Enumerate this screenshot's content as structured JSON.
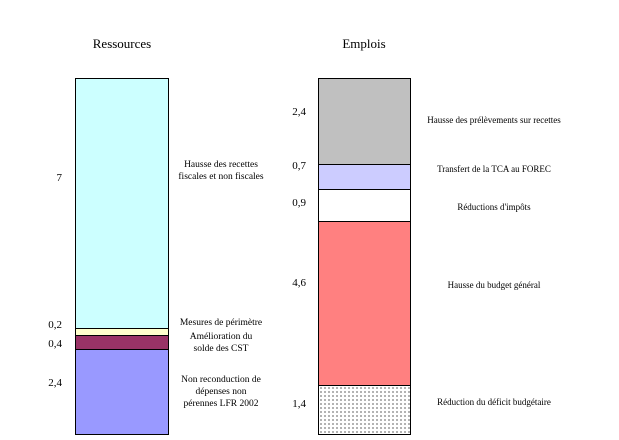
{
  "chart_data": {
    "type": "bar",
    "subtype": "paired-stacked-columns",
    "title": "",
    "unit_total": 10,
    "grid": false,
    "legend": "none",
    "columns": [
      {
        "title": "Ressources",
        "segments": [
          {
            "value_label": "7",
            "value": 7,
            "label": "Hausse des recettes\nfiscales et non fiscales",
            "color": "#CCFFFF"
          },
          {
            "value_label": "0,2",
            "value": 0.2,
            "label": "Mesures de périmètre",
            "color": "#FFFFCC"
          },
          {
            "value_label": "0,4",
            "value": 0.4,
            "label": "Amélioration du\nsolde des CST",
            "color": "#993366"
          },
          {
            "value_label": "2,4",
            "value": 2.4,
            "label": "Non reconduction de\ndépenses non\npérennes LFR 2002",
            "color": "#9999FF"
          }
        ]
      },
      {
        "title": "Emplois",
        "segments": [
          {
            "value_label": "2,4",
            "value": 2.4,
            "label": "Hausse des prélèvements sur recettes",
            "color": "#C0C0C0"
          },
          {
            "value_label": "0,7",
            "value": 0.7,
            "label": "Transfert de la TCA au FOREC",
            "color": "#CCCCFF"
          },
          {
            "value_label": "0,9",
            "value": 0.9,
            "label": "Réductions d'impôts",
            "color": "#FFFFFF"
          },
          {
            "value_label": "4,6",
            "value": 4.6,
            "label": "Hausse du budget général",
            "color": "#FF8080"
          },
          {
            "value_label": "1,4",
            "value": 1.4,
            "label": "Réduction du déficit budgétaire",
            "color": "#FFFFFF",
            "pattern": "dots"
          }
        ]
      }
    ]
  }
}
